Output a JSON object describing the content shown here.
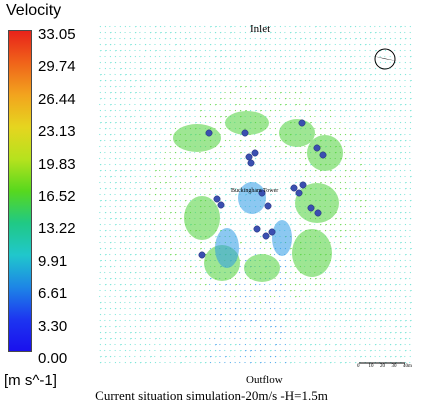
{
  "legend": {
    "title": "Velocity",
    "units": "[m s^-1]",
    "ticks": [
      "33.05",
      "29.74",
      "26.44",
      "23.13",
      "19.83",
      "16.52",
      "13.22",
      "9.91",
      "6.61",
      "3.30",
      "0.00"
    ]
  },
  "labels": {
    "inlet": "Inlet",
    "outflow": "Outflow",
    "center": "Buckingham Tower"
  },
  "scale_bar": {
    "ticks": [
      "0",
      "10",
      "20",
      "30",
      "40m"
    ]
  },
  "caption": "Current situation simulation-20m/s -H=1.5m",
  "colors": {
    "field": "#5fe0d0",
    "wake": "#2e9be6",
    "accel": "#4fd23a",
    "building": "#3b4fb0"
  }
}
